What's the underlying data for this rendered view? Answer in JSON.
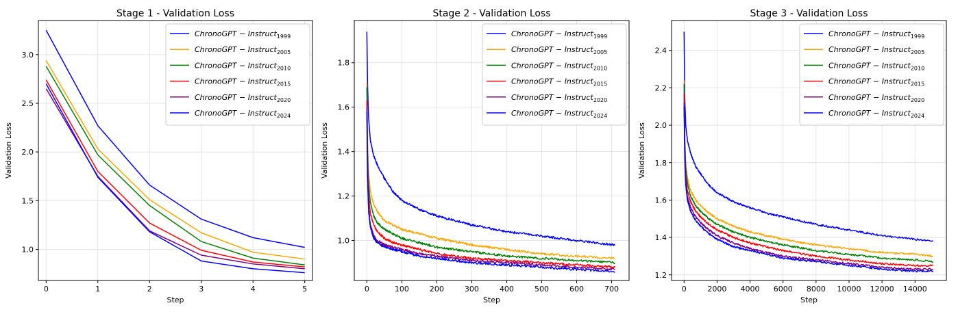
{
  "chart_data": [
    {
      "type": "line",
      "title": "Stage 1 - Validation Loss",
      "xlabel": "Step",
      "ylabel": "Validation Loss",
      "xlim": [
        -0.15,
        5.15
      ],
      "ylim": [
        0.68,
        3.35
      ],
      "xticks": [
        0,
        1,
        2,
        3,
        4,
        5
      ],
      "yticks": [
        1.0,
        1.5,
        2.0,
        2.5,
        3.0
      ],
      "grid": true,
      "legend": "top-right",
      "noise": 0,
      "series": [
        {
          "name": "ChronoGPT − Instruct",
          "sub": "1999",
          "color": "#0000ff",
          "x": [
            0,
            1,
            2,
            3,
            4,
            5
          ],
          "y": [
            3.25,
            2.27,
            1.66,
            1.31,
            1.12,
            1.02
          ]
        },
        {
          "name": "ChronoGPT − Instruct",
          "sub": "2005",
          "color": "#ffa500",
          "x": [
            0,
            1,
            2,
            3,
            4,
            5
          ],
          "y": [
            2.94,
            2.03,
            1.51,
            1.17,
            0.97,
            0.9
          ]
        },
        {
          "name": "ChronoGPT − Instruct",
          "sub": "2010",
          "color": "#008000",
          "x": [
            0,
            1,
            2,
            3,
            4,
            5
          ],
          "y": [
            2.88,
            1.97,
            1.45,
            1.08,
            0.91,
            0.84
          ]
        },
        {
          "name": "ChronoGPT − Instruct",
          "sub": "2015",
          "color": "#ff0000",
          "x": [
            0,
            1,
            2,
            3,
            4,
            5
          ],
          "y": [
            2.74,
            1.8,
            1.27,
            0.99,
            0.87,
            0.82
          ]
        },
        {
          "name": "ChronoGPT − Instruct",
          "sub": "2020",
          "color": "#800080",
          "x": [
            0,
            1,
            2,
            3,
            4,
            5
          ],
          "y": [
            2.65,
            1.75,
            1.19,
            0.94,
            0.85,
            0.8
          ]
        },
        {
          "name": "ChronoGPT − Instruct",
          "sub": "2024",
          "color": "#0000ff",
          "x": [
            0,
            1,
            2,
            3,
            4,
            5
          ],
          "y": [
            2.7,
            1.74,
            1.18,
            0.88,
            0.8,
            0.76
          ]
        }
      ]
    },
    {
      "type": "line",
      "title": "Stage 2 - Validation Loss",
      "xlabel": "Step",
      "ylabel": "Validation Loss",
      "xlim": [
        -36,
        750
      ],
      "ylim": [
        0.82,
        1.99
      ],
      "xticks": [
        0,
        100,
        200,
        300,
        400,
        500,
        600,
        700
      ],
      "yticks": [
        1.0,
        1.2,
        1.4,
        1.6,
        1.8
      ],
      "grid": true,
      "legend": "top-right",
      "noise": 0.005,
      "series": [
        {
          "name": "ChronoGPT − Instruct",
          "sub": "1999",
          "color": "#0000ff",
          "x": [
            0,
            2,
            5,
            10,
            20,
            30,
            50,
            75,
            100,
            150,
            200,
            300,
            400,
            500,
            600,
            710
          ],
          "y": [
            1.94,
            1.7,
            1.55,
            1.45,
            1.38,
            1.34,
            1.28,
            1.22,
            1.18,
            1.14,
            1.11,
            1.07,
            1.04,
            1.02,
            1.0,
            0.98
          ]
        },
        {
          "name": "ChronoGPT − Instruct",
          "sub": "2005",
          "color": "#ffa500",
          "x": [
            0,
            2,
            5,
            10,
            20,
            30,
            50,
            75,
            100,
            150,
            200,
            300,
            400,
            500,
            600,
            710
          ],
          "y": [
            1.71,
            1.45,
            1.3,
            1.22,
            1.16,
            1.13,
            1.09,
            1.07,
            1.05,
            1.03,
            1.01,
            0.98,
            0.96,
            0.94,
            0.93,
            0.92
          ]
        },
        {
          "name": "ChronoGPT − Instruct",
          "sub": "2010",
          "color": "#008000",
          "x": [
            0,
            2,
            5,
            10,
            20,
            30,
            50,
            75,
            100,
            150,
            200,
            300,
            400,
            500,
            600,
            710
          ],
          "y": [
            1.69,
            1.4,
            1.25,
            1.17,
            1.11,
            1.08,
            1.05,
            1.03,
            1.01,
            0.99,
            0.97,
            0.95,
            0.93,
            0.92,
            0.91,
            0.9
          ]
        },
        {
          "name": "ChronoGPT − Instruct",
          "sub": "2015",
          "color": "#ff0000",
          "x": [
            0,
            2,
            5,
            10,
            20,
            30,
            50,
            75,
            100,
            150,
            200,
            300,
            400,
            500,
            600,
            710
          ],
          "y": [
            1.63,
            1.35,
            1.2,
            1.12,
            1.07,
            1.04,
            1.01,
            0.99,
            0.98,
            0.96,
            0.94,
            0.92,
            0.91,
            0.9,
            0.89,
            0.88
          ]
        },
        {
          "name": "ChronoGPT − Instruct",
          "sub": "2020",
          "color": "#800080",
          "x": [
            0,
            2,
            5,
            10,
            20,
            30,
            50,
            75,
            100,
            150,
            200,
            300,
            400,
            500,
            600,
            710
          ],
          "y": [
            1.6,
            1.3,
            1.15,
            1.07,
            1.02,
            1.0,
            0.98,
            0.97,
            0.96,
            0.94,
            0.93,
            0.91,
            0.9,
            0.89,
            0.88,
            0.87
          ]
        },
        {
          "name": "ChronoGPT − Instruct",
          "sub": "2024",
          "color": "#0000ff",
          "x": [
            0,
            2,
            5,
            10,
            20,
            30,
            50,
            75,
            100,
            150,
            200,
            300,
            400,
            500,
            600,
            710
          ],
          "y": [
            1.58,
            1.28,
            1.13,
            1.06,
            1.01,
            0.99,
            0.97,
            0.96,
            0.95,
            0.93,
            0.92,
            0.9,
            0.89,
            0.88,
            0.87,
            0.86
          ]
        }
      ]
    },
    {
      "type": "line",
      "title": "Stage 3 - Validation Loss",
      "xlabel": "Step",
      "ylabel": "Validation Loss",
      "xlim": [
        -760,
        15900
      ],
      "ylim": [
        1.17,
        2.56
      ],
      "xticks": [
        0,
        2000,
        4000,
        6000,
        8000,
        10000,
        12000,
        14000
      ],
      "yticks": [
        1.2,
        1.4,
        1.6,
        1.8,
        2.0,
        2.2,
        2.4
      ],
      "grid": true,
      "legend": "top-right",
      "noise": 0.005,
      "series": [
        {
          "name": "ChronoGPT − Instruct",
          "sub": "1999",
          "color": "#0000ff",
          "x": [
            0,
            40,
            100,
            200,
            400,
            700,
            1000,
            1500,
            2000,
            3000,
            4000,
            5000,
            6000,
            8000,
            10000,
            12000,
            14000,
            15100
          ],
          "y": [
            2.5,
            2.15,
            2.0,
            1.92,
            1.85,
            1.78,
            1.74,
            1.68,
            1.64,
            1.59,
            1.56,
            1.53,
            1.51,
            1.47,
            1.44,
            1.41,
            1.39,
            1.38
          ]
        },
        {
          "name": "ChronoGPT − Instruct",
          "sub": "2005",
          "color": "#ffa500",
          "x": [
            0,
            40,
            100,
            200,
            400,
            700,
            1000,
            1500,
            2000,
            3000,
            4000,
            5000,
            6000,
            8000,
            10000,
            12000,
            14000,
            15100
          ],
          "y": [
            2.24,
            1.95,
            1.8,
            1.72,
            1.65,
            1.6,
            1.57,
            1.53,
            1.5,
            1.46,
            1.43,
            1.41,
            1.39,
            1.36,
            1.34,
            1.32,
            1.31,
            1.3
          ]
        },
        {
          "name": "ChronoGPT − Instruct",
          "sub": "2010",
          "color": "#008000",
          "x": [
            0,
            40,
            100,
            200,
            400,
            700,
            1000,
            1500,
            2000,
            3000,
            4000,
            5000,
            6000,
            8000,
            10000,
            12000,
            14000,
            15100
          ],
          "y": [
            2.22,
            1.92,
            1.77,
            1.69,
            1.62,
            1.57,
            1.54,
            1.5,
            1.47,
            1.43,
            1.4,
            1.38,
            1.36,
            1.33,
            1.31,
            1.29,
            1.28,
            1.27
          ]
        },
        {
          "name": "ChronoGPT − Instruct",
          "sub": "2015",
          "color": "#ff0000",
          "x": [
            0,
            40,
            100,
            200,
            400,
            700,
            1000,
            1500,
            2000,
            3000,
            4000,
            5000,
            6000,
            8000,
            10000,
            12000,
            14000,
            15100
          ],
          "y": [
            2.17,
            1.88,
            1.73,
            1.65,
            1.59,
            1.54,
            1.51,
            1.47,
            1.44,
            1.4,
            1.37,
            1.35,
            1.33,
            1.3,
            1.28,
            1.26,
            1.25,
            1.25
          ]
        },
        {
          "name": "ChronoGPT − Instruct",
          "sub": "2020",
          "color": "#800080",
          "x": [
            0,
            40,
            100,
            200,
            400,
            700,
            1000,
            1500,
            2000,
            3000,
            4000,
            5000,
            6000,
            8000,
            10000,
            12000,
            14000,
            15100
          ],
          "y": [
            2.12,
            1.85,
            1.7,
            1.62,
            1.56,
            1.51,
            1.48,
            1.44,
            1.41,
            1.37,
            1.34,
            1.32,
            1.3,
            1.28,
            1.26,
            1.24,
            1.23,
            1.23
          ]
        },
        {
          "name": "ChronoGPT − Instruct",
          "sub": "2024",
          "color": "#0000ff",
          "x": [
            0,
            40,
            100,
            200,
            400,
            700,
            1000,
            1500,
            2000,
            3000,
            4000,
            5000,
            6000,
            8000,
            10000,
            12000,
            14000,
            15100
          ],
          "y": [
            2.1,
            1.83,
            1.68,
            1.6,
            1.54,
            1.49,
            1.46,
            1.42,
            1.39,
            1.35,
            1.33,
            1.31,
            1.29,
            1.27,
            1.25,
            1.23,
            1.22,
            1.22
          ]
        }
      ]
    }
  ]
}
